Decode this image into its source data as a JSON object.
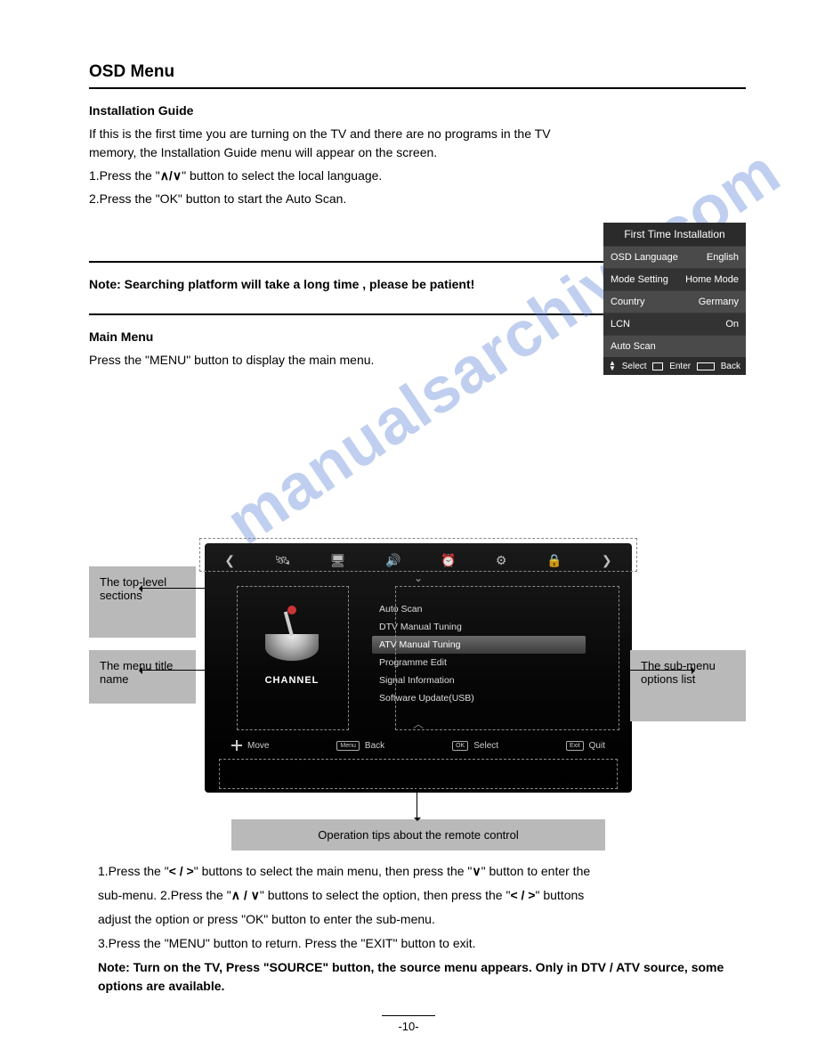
{
  "section": {
    "title": "OSD Menu",
    "sub1_title": "Installation Guide",
    "sub1_body_1": "If this is the first time you are turning on the TV and there are no programs in the TV memory, the Installation Guide menu will appear on the screen.",
    "sub1_body_2a": "1.Press the \"",
    "sub1_body_2b": "\" button to select the local language.",
    "sub1_body_3": "2.Press the \"OK\" button to start the Auto Scan.",
    "sub1_more_1": "Note: Searching platform will take a long time , please be patient!",
    "sub2_title": "Main Menu",
    "sub2_body": "Press the \"MENU\" button to display the main menu."
  },
  "source_menu": {
    "header": "First Time Installation",
    "rows": [
      {
        "l": "OSD Language",
        "r": "English",
        "dark": false
      },
      {
        "l": "Mode Setting",
        "r": "Home Mode",
        "dark": true
      },
      {
        "l": "Country",
        "r": "Germany",
        "dark": false
      },
      {
        "l": "LCN",
        "r": "On",
        "dark": true
      },
      {
        "l": "Auto Scan",
        "r": "",
        "dark": false
      }
    ],
    "footer": {
      "select": "Select",
      "enter": "Enter",
      "exit": "EXIT",
      "back": "Back"
    }
  },
  "osd": {
    "icons": [
      "❮",
      "🛰",
      "🖥",
      "🔊",
      "⏰",
      "⚙",
      "🔒",
      "❯"
    ],
    "side_label": "CHANNEL",
    "items": [
      {
        "t": "Auto Scan",
        "sel": false
      },
      {
        "t": "DTV Manual Tuning",
        "sel": false
      },
      {
        "t": "ATV Manual Tuning",
        "sel": true
      },
      {
        "t": "Programme Edit",
        "sel": false
      },
      {
        "t": "Signal Information",
        "sel": false
      },
      {
        "t": "Software Update(USB)",
        "sel": false
      }
    ],
    "footer": {
      "move": "Move",
      "back_key": "Menu",
      "back": "Back",
      "sel_key": "OK",
      "sel": "Select",
      "quit_key": "Exit",
      "quit": "Quit"
    }
  },
  "callouts": {
    "topleft": "The top-level sections",
    "midleft": "The menu title name",
    "midright": "The sub-menu options list",
    "bottom": "Operation tips about the remote control"
  },
  "instr": {
    "l1a": "1.Press the \"",
    "l1b": "\" buttons to select the main menu, then press the \"",
    "l1c": "\" button to enter the",
    "l2a": "sub-menu. 2.Press the \"",
    "l2b": "\" buttons to select the option, then press the \"",
    "l2c": "\" buttons",
    "l3": "adjust the option or press \"OK\" button to enter the sub-menu.",
    "l4": "3.Press the \"MENU\" button to return. Press the \"EXIT\" button to exit.",
    "l5": "Note: Turn on the TV, Press \"SOURCE\" button, the source menu appears. Only in DTV / ATV source, some options are available."
  },
  "watermark": "manualsarchive.com",
  "page_number": "-10-"
}
